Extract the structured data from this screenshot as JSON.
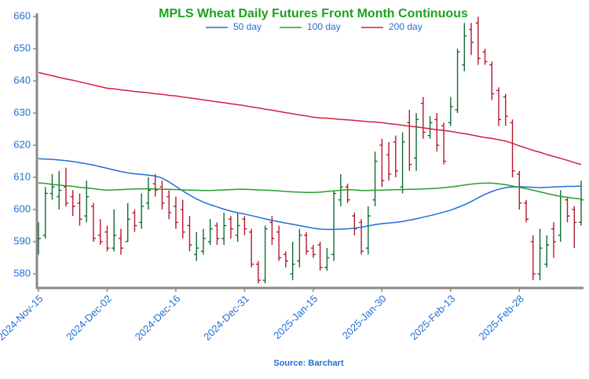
{
  "chart_data": {
    "type": "ohlc",
    "title": "MPLS Wheat Daily Futures Front Month Continuous",
    "source": "Source: Barchart",
    "legend": "top",
    "categories": [
      "2024-Nov-15",
      null,
      null,
      null,
      null,
      null,
      null,
      null,
      null,
      null,
      "2024-Dec-02",
      null,
      null,
      null,
      null,
      null,
      null,
      null,
      null,
      null,
      "2024-Dec-16",
      null,
      null,
      null,
      null,
      null,
      null,
      null,
      null,
      null,
      "2024-Dec-31",
      null,
      null,
      null,
      null,
      null,
      null,
      null,
      null,
      null,
      "2025-Jan-15",
      null,
      null,
      null,
      null,
      null,
      null,
      null,
      null,
      null,
      "2025-Jan-30",
      null,
      null,
      null,
      null,
      null,
      null,
      null,
      null,
      null,
      "2025-Feb-13",
      null,
      null,
      null,
      null,
      null,
      null,
      null,
      null,
      null,
      "2025-Feb-28",
      null,
      null,
      null,
      null,
      null,
      null,
      null,
      null,
      null
    ],
    "ohlc": {
      "up_color": "#0f6b35",
      "down_color": "#b5172f",
      "open": [
        588,
        592,
        605,
        604,
        607,
        604,
        602,
        598,
        601,
        592,
        593,
        588,
        591,
        590,
        599,
        596,
        602,
        608,
        607,
        604,
        601,
        600,
        595,
        586,
        587,
        590,
        595,
        591,
        597,
        592,
        597,
        593,
        583,
        578,
        596,
        593,
        586,
        580,
        584,
        592,
        588,
        589,
        582,
        586,
        603,
        607,
        598,
        596,
        588,
        603,
        620,
        617,
        621,
        607,
        627,
        616,
        633,
        623,
        628,
        626,
        627,
        631,
        645,
        656,
        658,
        649,
        645,
        637,
        635,
        627,
        611,
        602,
        590,
        580,
        583,
        594,
        592,
        603,
        600,
        596
      ],
      "high": [
        596,
        607,
        611,
        612,
        613,
        606,
        605,
        609,
        602,
        597,
        595,
        600,
        594,
        602,
        600,
        605,
        610,
        611,
        609,
        606,
        604,
        603,
        598,
        593,
        594,
        597,
        596,
        599,
        598,
        599,
        598,
        594,
        584,
        595,
        598,
        595,
        587,
        590,
        594,
        593,
        589,
        590,
        588,
        606,
        611,
        608,
        599,
        597,
        601,
        618,
        622,
        621,
        623,
        624,
        631,
        630,
        635,
        629,
        630,
        627,
        635,
        650,
        658,
        658,
        660,
        650,
        646,
        638,
        636,
        628,
        612,
        603,
        592,
        594,
        592,
        596,
        606,
        604,
        601,
        609
      ],
      "low": [
        586,
        591,
        603,
        600,
        601,
        598,
        595,
        596,
        590,
        589,
        587,
        587,
        586,
        590,
        593,
        594,
        600,
        604,
        600,
        597,
        594,
        591,
        587,
        584,
        586,
        589,
        589,
        589,
        591,
        590,
        592,
        582,
        577,
        577,
        589,
        584,
        582,
        578,
        582,
        586,
        585,
        581,
        581,
        584,
        601,
        602,
        592,
        586,
        586,
        601,
        607,
        609,
        610,
        605,
        612,
        612,
        622,
        622,
        618,
        614,
        626,
        630,
        643,
        648,
        645,
        645,
        634,
        626,
        626,
        610,
        600,
        596,
        578,
        578,
        582,
        585,
        590,
        596,
        588,
        595
      ],
      "close": [
        591,
        605,
        607,
        606,
        602,
        601,
        597,
        604,
        591,
        590,
        588,
        592,
        588,
        597,
        595,
        601,
        606,
        606,
        602,
        599,
        596,
        593,
        589,
        588,
        591,
        594,
        591,
        595,
        594,
        595,
        594,
        583,
        578,
        594,
        591,
        585,
        584,
        583,
        592,
        587,
        586,
        582,
        585,
        605,
        607,
        603,
        594,
        587,
        598,
        615,
        609,
        611,
        612,
        621,
        614,
        628,
        624,
        627,
        620,
        615,
        632,
        649,
        654,
        652,
        647,
        646,
        636,
        628,
        629,
        612,
        602,
        597,
        580,
        588,
        589,
        590,
        604,
        598,
        596,
        603
      ]
    },
    "series": [
      {
        "name": "50 day",
        "color": "#1f6fd6",
        "values": [
          615.8,
          615.7,
          615.6,
          615.4,
          615.2,
          614.9,
          614.6,
          614.2,
          613.8,
          613.3,
          612.8,
          612.3,
          611.8,
          611.4,
          611.1,
          610.9,
          610.7,
          610.4,
          609.8,
          608.6,
          607.2,
          605.8,
          604.5,
          603.3,
          602.3,
          601.5,
          600.8,
          600.1,
          599.5,
          599.0,
          598.6,
          598.1,
          597.6,
          597.1,
          596.6,
          596.2,
          595.8,
          595.4,
          595.0,
          594.6,
          594.2,
          593.9,
          593.8,
          593.8,
          593.9,
          594.0,
          594.2,
          594.5,
          594.9,
          595.3,
          595.6,
          595.8,
          596.0,
          596.3,
          596.7,
          597.1,
          597.6,
          598.1,
          598.6,
          599.2,
          599.8,
          600.6,
          601.5,
          602.5,
          603.6,
          604.7,
          605.6,
          606.3,
          606.8,
          607.0,
          607.1,
          607.0,
          606.9,
          606.8,
          606.9,
          607.0,
          607.1,
          607.2,
          607.2,
          607.3
        ]
      },
      {
        "name": "100 day",
        "color": "#2a9d2a",
        "values": [
          608.3,
          608.1,
          607.8,
          607.6,
          607.4,
          607.2,
          606.9,
          606.7,
          606.5,
          606.2,
          606.0,
          606.1,
          606.2,
          606.3,
          606.4,
          606.4,
          606.4,
          606.4,
          606.3,
          606.3,
          606.2,
          606.1,
          606.0,
          606.0,
          605.9,
          605.9,
          606.0,
          606.1,
          606.2,
          606.3,
          606.3,
          606.2,
          606.1,
          606.0,
          605.9,
          605.8,
          605.6,
          605.5,
          605.4,
          605.3,
          605.3,
          605.4,
          605.6,
          605.8,
          606.0,
          606.2,
          606.1,
          605.9,
          605.9,
          606.0,
          606.0,
          606.1,
          606.2,
          606.2,
          606.3,
          606.3,
          606.4,
          606.5,
          606.6,
          606.8,
          607.0,
          607.3,
          607.6,
          607.9,
          608.1,
          608.2,
          608.2,
          608.0,
          607.7,
          607.3,
          606.9,
          606.5,
          606.0,
          605.5,
          605.0,
          604.5,
          604.1,
          603.8,
          603.5,
          603.3
        ]
      },
      {
        "name": "200 day",
        "color": "#d0213d",
        "values": [
          642.6,
          642.1,
          641.6,
          641.1,
          640.6,
          640.2,
          639.7,
          639.2,
          638.7,
          638.2,
          637.7,
          637.5,
          637.2,
          637.0,
          636.7,
          636.5,
          636.3,
          636.0,
          635.8,
          635.5,
          635.3,
          635.0,
          634.7,
          634.4,
          634.1,
          633.8,
          633.5,
          633.2,
          632.9,
          632.6,
          632.3,
          631.9,
          631.6,
          631.2,
          630.9,
          630.5,
          630.1,
          629.8,
          629.4,
          629.1,
          628.7,
          628.5,
          628.4,
          628.2,
          628.0,
          627.9,
          627.7,
          627.5,
          627.3,
          627.2,
          627.0,
          626.7,
          626.5,
          626.2,
          625.9,
          625.7,
          625.4,
          625.1,
          624.8,
          624.6,
          624.3,
          623.9,
          623.6,
          623.2,
          622.8,
          622.4,
          622.1,
          621.7,
          621.3,
          620.6,
          619.8,
          619.1,
          618.4,
          617.8,
          617.1,
          616.5,
          615.9,
          615.3,
          614.6,
          614.0
        ]
      }
    ],
    "ylim": [
      575.6,
      661
    ],
    "yticks": [
      580,
      590,
      600,
      610,
      620,
      630,
      640,
      650,
      660
    ]
  }
}
